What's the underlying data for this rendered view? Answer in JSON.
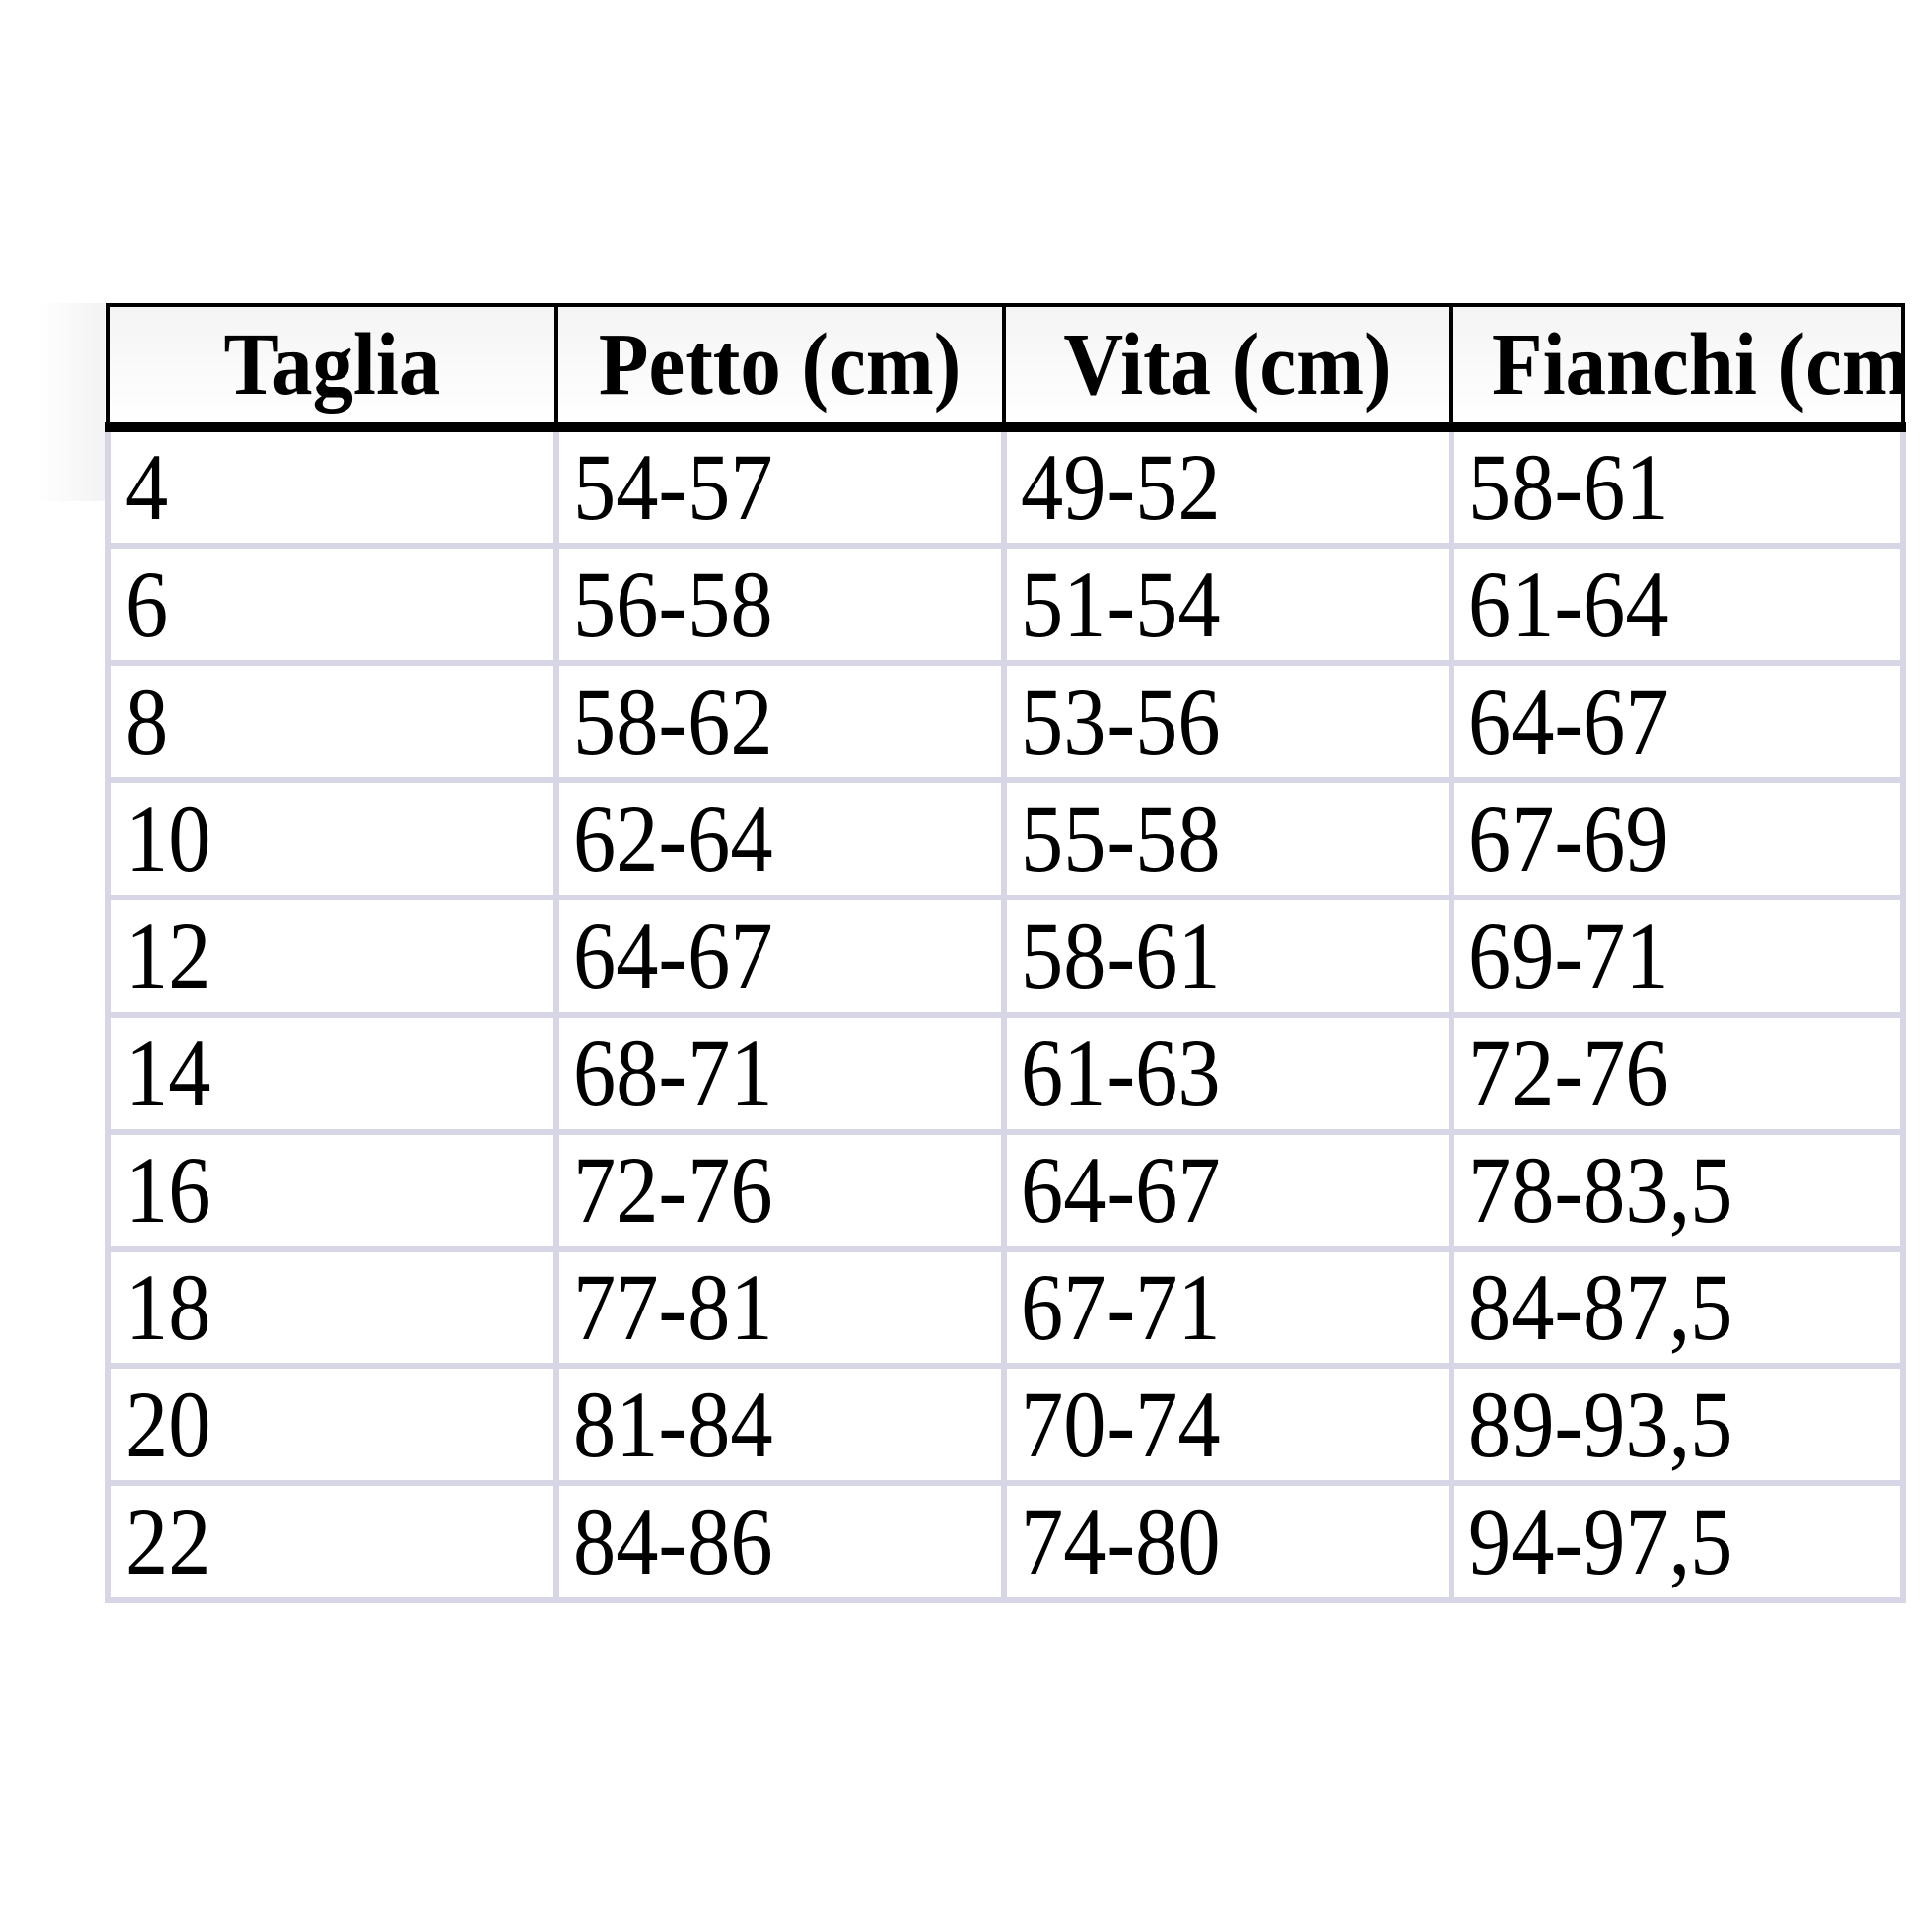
{
  "table": {
    "headers": [
      "Taglia",
      "Petto (cm)",
      "Vita (cm)",
      "Fianchi (cm)"
    ],
    "rows": [
      [
        "4",
        "54-57",
        "49-52",
        "58-61"
      ],
      [
        "6",
        "56-58",
        "51-54",
        "61-64"
      ],
      [
        "8",
        "58-62",
        "53-56",
        "64-67"
      ],
      [
        "10",
        "62-64",
        "55-58",
        "67-69"
      ],
      [
        "12",
        "64-67",
        "58-61",
        "69-71"
      ],
      [
        "14",
        "68-71",
        "61-63",
        "72-76"
      ],
      [
        "16",
        "72-76",
        "64-67",
        "78-83,5"
      ],
      [
        "18",
        "77-81",
        "67-71",
        "84-87,5"
      ],
      [
        "20",
        "81-84",
        "70-74",
        "89-93,5"
      ],
      [
        "22",
        "84-86",
        "74-80",
        "94-97,5"
      ]
    ]
  },
  "colors": {
    "header_border": "#000000",
    "cell_border": "#d6d6e6"
  }
}
